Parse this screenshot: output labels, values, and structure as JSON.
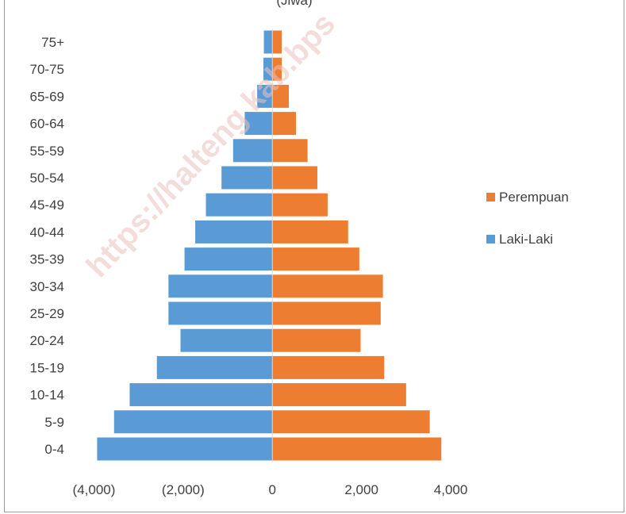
{
  "chart_data": {
    "type": "bar",
    "orientation": "horizontal",
    "title": "(Jiwa)",
    "categories": [
      "0-4",
      "5-9",
      "10-14",
      "15-19",
      "20-24",
      "25-29",
      "30-34",
      "35-39",
      "40-44",
      "45-49",
      "50-54",
      "55-59",
      "60-64",
      "65-69",
      "70-75",
      "75+"
    ],
    "series": [
      {
        "name": "Laki-Laki",
        "color": "#5b9bd5",
        "values": [
          -3930,
          -3550,
          -3200,
          -2590,
          -2060,
          -2330,
          -2330,
          -1970,
          -1730,
          -1490,
          -1140,
          -880,
          -620,
          -340,
          -200,
          -190
        ]
      },
      {
        "name": "Perempuan",
        "color": "#ed7d31",
        "values": [
          3790,
          3530,
          3000,
          2510,
          1980,
          2430,
          2480,
          1950,
          1700,
          1240,
          1010,
          790,
          530,
          370,
          210,
          210
        ]
      }
    ],
    "xlim": [
      -4400,
      4800
    ],
    "xticks": [
      {
        "value": -4000,
        "label": "(4,000)"
      },
      {
        "value": -2000,
        "label": "(2,000)"
      },
      {
        "value": 0,
        "label": "0"
      },
      {
        "value": 2000,
        "label": "2,000"
      },
      {
        "value": 4000,
        "label": "4,000"
      }
    ],
    "grid": false,
    "legend": {
      "position": "right",
      "entries": [
        "Perempuan",
        "Laki-Laki"
      ]
    },
    "watermark": "https://halteng kab.bps"
  }
}
